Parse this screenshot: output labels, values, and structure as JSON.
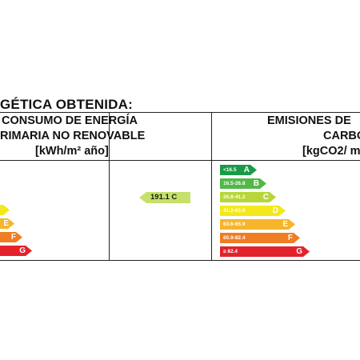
{
  "title": "GÉTICA OBTENIDA:",
  "consumo": {
    "line1": "CONSUMO DE ENERGÍA",
    "line2": "RIMARIA NO RENOVABLE",
    "unit": "[kWh/m² año]",
    "value": "191.1 C",
    "value_color": "#c6e06a"
  },
  "emisiones": {
    "line1": "EMISIONES DE",
    "line2": "CARBO",
    "unit": "[kgCO2/ m"
  },
  "scale": [
    {
      "letter": "A",
      "range": "<16.5",
      "color": "#1a9a48"
    },
    {
      "letter": "B",
      "range": "16.5-26.8",
      "color": "#52b848"
    },
    {
      "letter": "C",
      "range": "26.8-41.2",
      "color": "#b8d53a"
    },
    {
      "letter": "D",
      "range": "41.2-63.6",
      "color": "#f3e81c"
    },
    {
      "letter": "E",
      "range": "63.6-65.9",
      "color": "#f5b52c"
    },
    {
      "letter": "F",
      "range": "65.9-82.4",
      "color": "#ef7d22"
    },
    {
      "letter": "G",
      "range": "≥ 82.4",
      "color": "#e4222b"
    }
  ]
}
